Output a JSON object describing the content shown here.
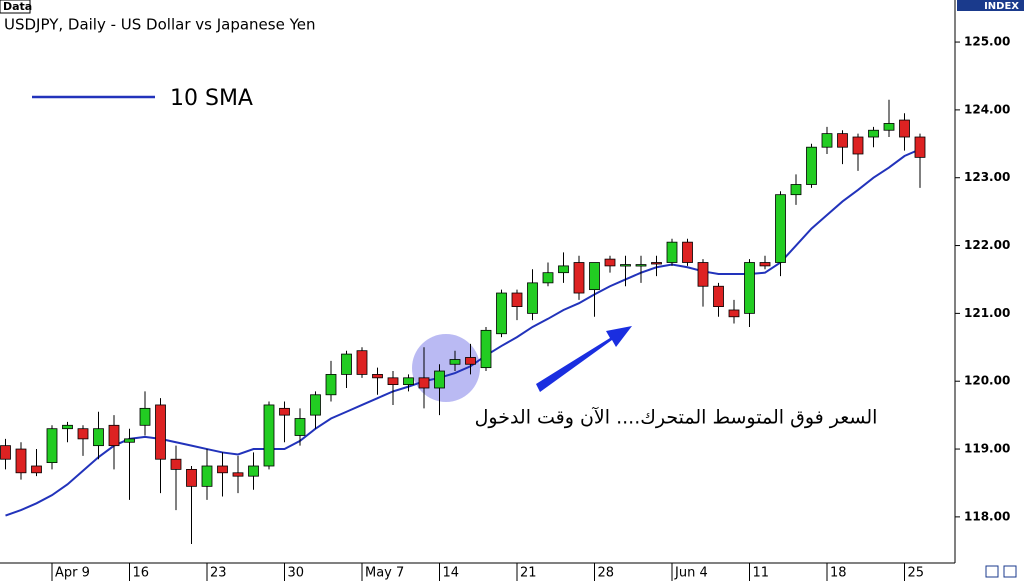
{
  "chart_data": {
    "type": "candlestick",
    "source_label": "Data",
    "axis_label": "INDEX",
    "title": "USDJPY, Daily - US Dollar vs Japanese Yen",
    "annotation": "السعر فوق المتوسط المتحرك.... الآن وقت الدخول",
    "categories": [
      null,
      null,
      null,
      "Apr 9",
      null,
      null,
      null,
      null,
      "16",
      null,
      null,
      null,
      null,
      "23",
      null,
      null,
      null,
      null,
      "30",
      null,
      null,
      null,
      null,
      "May 7",
      null,
      null,
      null,
      null,
      "14",
      null,
      null,
      null,
      null,
      "21",
      null,
      null,
      null,
      null,
      "28",
      null,
      null,
      null,
      null,
      "Jun 4",
      null,
      null,
      null,
      null,
      "11",
      null,
      null,
      null,
      null,
      "18",
      null,
      null,
      null,
      null,
      "25",
      null
    ],
    "up_color": "#22cc22",
    "down_color": "#dd2222",
    "open": [
      119.05,
      119.0,
      118.75,
      118.8,
      119.3,
      119.3,
      119.05,
      119.35,
      119.1,
      119.35,
      119.65,
      118.85,
      118.7,
      118.45,
      118.75,
      118.65,
      118.6,
      118.75,
      119.6,
      119.2,
      119.5,
      119.8,
      120.1,
      120.45,
      120.1,
      120.05,
      119.95,
      120.05,
      119.9,
      120.25,
      120.35,
      120.2,
      120.7,
      121.3,
      121.0,
      121.45,
      121.6,
      121.75,
      121.35,
      121.8,
      121.7,
      121.7,
      121.75,
      121.75,
      122.05,
      121.75,
      121.4,
      121.05,
      121.0,
      121.75,
      121.75,
      122.75,
      122.9,
      123.45,
      123.65,
      123.6,
      123.6,
      123.7,
      123.85,
      123.6
    ],
    "high": [
      119.15,
      119.1,
      119.0,
      119.35,
      119.4,
      119.35,
      119.55,
      119.5,
      119.3,
      119.85,
      119.75,
      119.05,
      118.75,
      119.0,
      118.95,
      118.9,
      118.95,
      119.7,
      119.7,
      119.6,
      119.85,
      120.3,
      120.45,
      120.5,
      120.2,
      120.15,
      120.1,
      120.5,
      120.25,
      120.45,
      120.55,
      120.8,
      121.35,
      121.35,
      121.65,
      121.75,
      121.9,
      121.85,
      121.75,
      121.85,
      121.85,
      121.85,
      121.85,
      122.1,
      122.1,
      121.8,
      121.45,
      121.2,
      121.8,
      121.85,
      122.8,
      123.05,
      123.5,
      123.75,
      123.7,
      123.65,
      123.75,
      124.15,
      123.95,
      123.65
    ],
    "low": [
      118.7,
      118.55,
      118.6,
      118.7,
      119.1,
      118.9,
      118.85,
      118.7,
      118.25,
      119.2,
      118.35,
      118.1,
      117.6,
      118.25,
      118.3,
      118.35,
      118.4,
      118.7,
      119.1,
      119.05,
      119.3,
      119.7,
      119.9,
      120.05,
      119.8,
      119.65,
      119.85,
      119.6,
      119.5,
      120.15,
      120.1,
      120.15,
      120.65,
      120.9,
      120.9,
      121.4,
      121.45,
      121.2,
      120.95,
      121.6,
      121.4,
      121.45,
      121.55,
      121.7,
      121.7,
      121.1,
      120.95,
      120.85,
      120.8,
      121.65,
      121.55,
      122.6,
      122.85,
      123.35,
      123.2,
      123.1,
      123.45,
      123.6,
      123.4,
      122.85
    ],
    "close": [
      118.85,
      118.65,
      118.65,
      119.3,
      119.35,
      119.15,
      119.3,
      119.05,
      119.15,
      119.6,
      118.85,
      118.7,
      118.45,
      118.75,
      118.65,
      118.6,
      118.75,
      119.65,
      119.5,
      119.45,
      119.8,
      120.1,
      120.4,
      120.1,
      120.05,
      119.95,
      120.05,
      119.9,
      120.15,
      120.32,
      120.25,
      120.75,
      121.3,
      121.1,
      121.45,
      121.6,
      121.7,
      121.3,
      121.75,
      121.7,
      121.72,
      121.72,
      121.73,
      122.05,
      121.75,
      121.4,
      121.1,
      120.95,
      121.75,
      121.7,
      122.75,
      122.9,
      123.45,
      123.65,
      123.45,
      123.35,
      123.7,
      123.8,
      123.6,
      123.3
    ],
    "series": [
      {
        "name": "10 SMA",
        "color": "#2233bb",
        "values": [
          118.02,
          118.1,
          118.2,
          118.32,
          118.48,
          118.68,
          118.88,
          119.05,
          119.15,
          119.18,
          119.15,
          119.1,
          119.05,
          119.0,
          118.95,
          118.92,
          119.0,
          119.0,
          119.0,
          119.12,
          119.3,
          119.45,
          119.55,
          119.65,
          119.75,
          119.85,
          119.92,
          120.0,
          120.05,
          120.12,
          120.22,
          120.38,
          120.52,
          120.65,
          120.8,
          120.92,
          121.05,
          121.15,
          121.28,
          121.4,
          121.5,
          121.6,
          121.68,
          121.72,
          121.68,
          121.62,
          121.58,
          121.58,
          121.58,
          121.6,
          121.75,
          122.0,
          122.25,
          122.45,
          122.65,
          122.82,
          123.0,
          123.15,
          123.32,
          123.42
        ]
      }
    ],
    "ylim": [
      117.32,
      125.62
    ],
    "yticks": [
      {
        "value": 118,
        "label": "118.00"
      },
      {
        "value": 119,
        "label": "119.00"
      },
      {
        "value": 120,
        "label": "120.00"
      },
      {
        "value": 121,
        "label": "121.00"
      },
      {
        "value": 122,
        "label": "122.00"
      },
      {
        "value": 123,
        "label": "123.00"
      },
      {
        "value": 124,
        "label": "124.00"
      },
      {
        "value": 125,
        "label": "125.00"
      }
    ]
  }
}
